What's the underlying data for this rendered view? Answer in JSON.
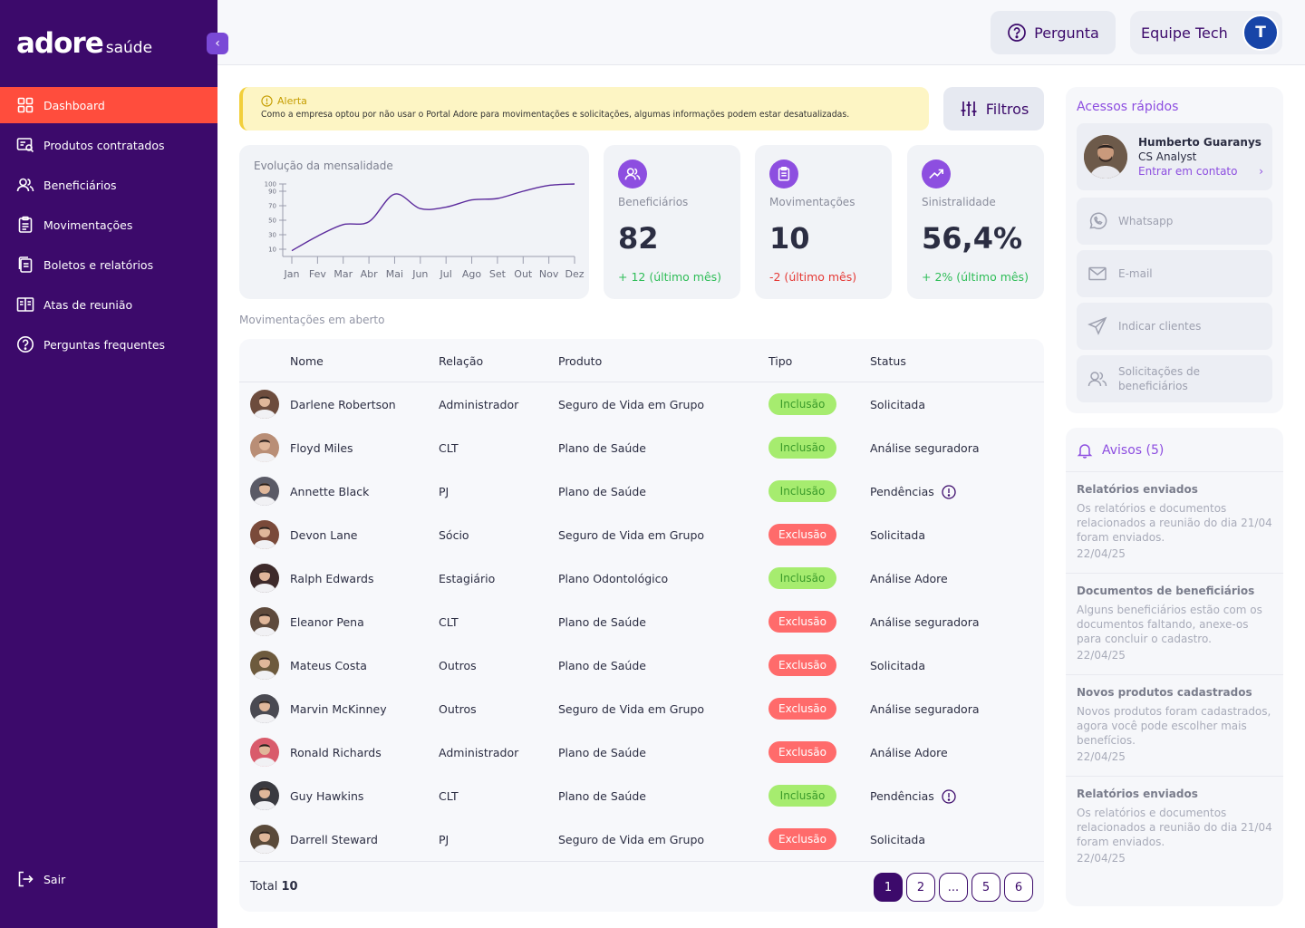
{
  "brand": {
    "logo_main": "adore",
    "logo_sub": "saúde"
  },
  "sidebar": {
    "items": [
      {
        "label": "Dashboard",
        "icon": "grid-icon",
        "active": true
      },
      {
        "label": "Produtos contratados",
        "icon": "document-search-icon",
        "active": false
      },
      {
        "label": "Beneficiários",
        "icon": "users-icon",
        "active": false
      },
      {
        "label": "Movimentações",
        "icon": "clipboard-icon",
        "active": false
      },
      {
        "label": "Boletos e relatórios",
        "icon": "documents-icon",
        "active": false
      },
      {
        "label": "Atas de reunião",
        "icon": "book-icon",
        "active": false
      },
      {
        "label": "Perguntas frequentes",
        "icon": "question-icon",
        "active": false
      }
    ],
    "logout_label": "Sair"
  },
  "topbar": {
    "question_label": "Pergunta",
    "team_label": "Equipe Tech",
    "team_avatar": "T"
  },
  "alert": {
    "title": "Alerta",
    "text": "Como a empresa optou por não usar o Portal Adore para movimentações e solicitações, algumas informações podem estar desatualizadas."
  },
  "filters_label": "Filtros",
  "chart_data": {
    "type": "line",
    "title": "Evolução da mensalidade",
    "categories": [
      "Jan",
      "Fev",
      "Mar",
      "Abr",
      "Mai",
      "Jun",
      "Jul",
      "Ago",
      "Set",
      "Out",
      "Nov",
      "Dez"
    ],
    "y_ticks": [
      100,
      90,
      70,
      50,
      30,
      10
    ],
    "values": [
      8,
      28,
      44,
      48,
      86,
      66,
      68,
      78,
      80,
      90,
      98,
      100
    ],
    "ylim": [
      0,
      100
    ],
    "color": "#5b2a9c"
  },
  "stats": [
    {
      "label": "Beneficiários",
      "value": "82",
      "delta": "+ 12 (último mês)",
      "trend": "positive",
      "icon": "users-icon"
    },
    {
      "label": "Movimentações",
      "value": "10",
      "delta": "-2 (último mês)",
      "trend": "negative",
      "icon": "clipboard-icon"
    },
    {
      "label": "Sinistralidade",
      "value": "56,4%",
      "delta": "+ 2% (último mês)",
      "trend": "positive",
      "icon": "trending-up-icon"
    }
  ],
  "table": {
    "section_label": "Movimentações em aberto",
    "headers": {
      "nome": "Nome",
      "relacao": "Relação",
      "produto": "Produto",
      "tipo": "Tipo",
      "status": "Status"
    },
    "rows": [
      {
        "nome": "Darlene Robertson",
        "relacao": "Administrador",
        "produto": "Seguro de Vida em Grupo",
        "tipo": "Inclusão",
        "tipo_kind": "in",
        "status": "Solicitada",
        "pendencia": false,
        "avatar_color": "#6d4c3d"
      },
      {
        "nome": "Floyd Miles",
        "relacao": "CLT",
        "produto": "Plano de Saúde",
        "tipo": "Inclusão",
        "tipo_kind": "in",
        "status": "Análise seguradora",
        "pendencia": false,
        "avatar_color": "#b98e76"
      },
      {
        "nome": "Annette Black",
        "relacao": "PJ",
        "produto": "Plano de Saúde",
        "tipo": "Inclusão",
        "tipo_kind": "in",
        "status": "Pendências",
        "pendencia": true,
        "avatar_color": "#5a5a66"
      },
      {
        "nome": "Devon Lane",
        "relacao": "Sócio",
        "produto": "Seguro de Vida em Grupo",
        "tipo": "Exclusão",
        "tipo_kind": "out",
        "status": "Solicitada",
        "pendencia": false,
        "avatar_color": "#7a4a3a"
      },
      {
        "nome": "Ralph Edwards",
        "relacao": "Estagiário",
        "produto": "Plano Odontológico",
        "tipo": "Inclusão",
        "tipo_kind": "in",
        "status": "Análise Adore",
        "pendencia": false,
        "avatar_color": "#3d2a2a"
      },
      {
        "nome": "Eleanor Pena",
        "relacao": "CLT",
        "produto": "Plano de Saúde",
        "tipo": "Exclusão",
        "tipo_kind": "out",
        "status": "Análise seguradora",
        "pendencia": false,
        "avatar_color": "#5e4a3c"
      },
      {
        "nome": "Mateus Costa",
        "relacao": "Outros",
        "produto": "Plano de Saúde",
        "tipo": "Exclusão",
        "tipo_kind": "out",
        "status": "Solicitada",
        "pendencia": false,
        "avatar_color": "#6d5a3d"
      },
      {
        "nome": "Marvin McKinney",
        "relacao": "Outros",
        "produto": "Seguro de Vida em Grupo",
        "tipo": "Exclusão",
        "tipo_kind": "out",
        "status": "Análise seguradora",
        "pendencia": false,
        "avatar_color": "#4a4a52"
      },
      {
        "nome": "Ronald Richards",
        "relacao": "Administrador",
        "produto": "Plano de Saúde",
        "tipo": "Exclusão",
        "tipo_kind": "out",
        "status": "Análise Adore",
        "pendencia": false,
        "avatar_color": "#d95b6b"
      },
      {
        "nome": "Guy Hawkins",
        "relacao": "CLT",
        "produto": "Plano de Saúde",
        "tipo": "Inclusão",
        "tipo_kind": "in",
        "status": "Pendências",
        "pendencia": true,
        "avatar_color": "#3a3a40"
      },
      {
        "nome": "Darrell Steward",
        "relacao": "PJ",
        "produto": "Seguro de Vida em Grupo",
        "tipo": "Exclusão",
        "tipo_kind": "out",
        "status": "Solicitada",
        "pendencia": false,
        "avatar_color": "#5a4a3a"
      }
    ],
    "total_label": "Total",
    "total_value": "10",
    "pages": [
      "1",
      "2",
      "...",
      "5",
      "6"
    ],
    "current_page": "1"
  },
  "quick_access": {
    "title": "Acessos rápidos",
    "contact": {
      "name": "Humberto Guaranys",
      "role": "CS Analyst",
      "link": "Entrar em contato"
    },
    "links": [
      {
        "label": "Whatsapp",
        "icon": "whatsapp-icon"
      },
      {
        "label": "E-mail",
        "icon": "mail-icon"
      },
      {
        "label": "Indicar clientes",
        "icon": "send-icon"
      },
      {
        "label": "Solicitações de beneficiários",
        "icon": "users-icon"
      }
    ]
  },
  "notices": {
    "title": "Avisos (5)",
    "items": [
      {
        "title": "Relatórios enviados",
        "body": "Os relatórios e documentos relacionados a reunião do dia 21/04 foram enviados.",
        "date": "22/04/25"
      },
      {
        "title": "Documentos de beneficiários",
        "body": "Alguns beneficiários estão com os documentos faltando, anexe-os para concluir o cadastro.",
        "date": "22/04/25"
      },
      {
        "title": "Novos produtos cadastrados",
        "body": "Novos produtos foram cadastrados, agora você pode escolher mais benefícios.",
        "date": "22/04/25"
      },
      {
        "title": "Relatórios enviados",
        "body": "Os relatórios e documentos relacionados a reunião do dia 21/04 foram enviados.",
        "date": "22/04/25"
      }
    ]
  }
}
